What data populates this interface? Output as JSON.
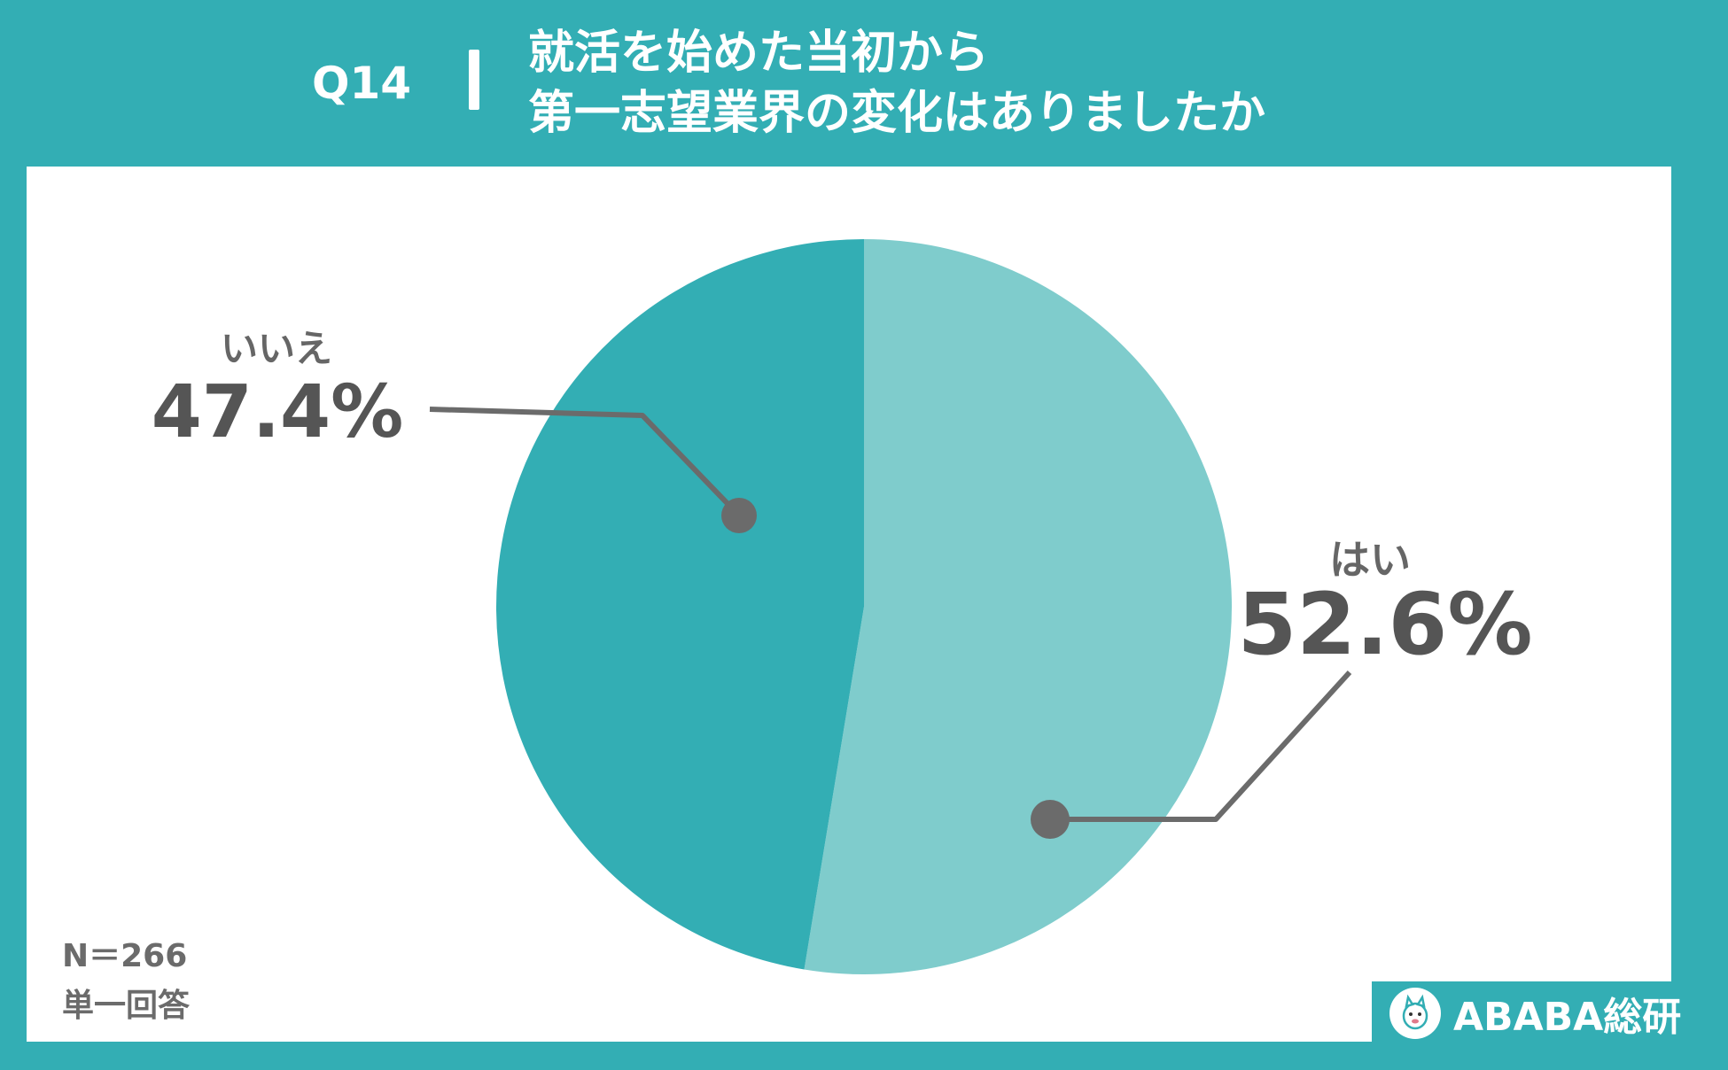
{
  "header": {
    "question": "Q14",
    "title_line1": "就活を始めた当初から",
    "title_line2": "第一志望業界の変化はありましたか"
  },
  "notes": {
    "n": "N＝266",
    "type": "単一回答"
  },
  "logo": {
    "text": "ABABA総研",
    "icon": "alpaca-icon"
  },
  "colors": {
    "background": "#33AEB4",
    "yes": "#7FCCCC",
    "no": "#33AEB4",
    "label": "#555555"
  },
  "chart_data": {
    "type": "pie",
    "categories": [
      "はい",
      "いいえ"
    ],
    "values": [
      52.6,
      47.4
    ],
    "labels": [
      "52.6%",
      "47.4%"
    ],
    "start": "12 o'clock",
    "direction": "clockwise"
  }
}
